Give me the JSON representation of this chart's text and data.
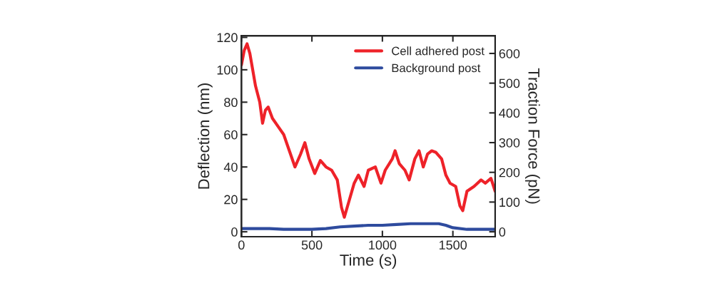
{
  "chart_data": {
    "type": "line",
    "xlabel": "Time (s)",
    "ylabel": "Deflection (nm)",
    "y2label": "Traction Force (pN)",
    "xlim": [
      0,
      1800
    ],
    "xticks": [
      0,
      500,
      1000,
      1500
    ],
    "ylim": [
      -3,
      121
    ],
    "yticks": [
      0,
      20,
      40,
      60,
      80,
      100,
      120
    ],
    "y2lim": [
      -16.35,
      659.5
    ],
    "y2ticks": [
      0,
      100,
      200,
      300,
      400,
      500,
      600
    ],
    "grid": false,
    "legend": "top right",
    "marker": "none",
    "line_style": "solid",
    "series": [
      {
        "name": "Cell adhered post",
        "color": "#ee2229",
        "x": [
          0,
          20,
          40,
          60,
          80,
          100,
          130,
          150,
          170,
          190,
          220,
          260,
          300,
          340,
          380,
          420,
          450,
          480,
          520,
          560,
          600,
          640,
          680,
          710,
          730,
          760,
          800,
          830,
          870,
          900,
          950,
          990,
          1020,
          1070,
          1090,
          1120,
          1160,
          1190,
          1230,
          1260,
          1290,
          1320,
          1350,
          1380,
          1420,
          1450,
          1480,
          1520,
          1550,
          1570,
          1600,
          1650,
          1700,
          1730,
          1770,
          1800
        ],
        "values": [
          103,
          112,
          116,
          110,
          100,
          90,
          80,
          67,
          75,
          77,
          70,
          65,
          60,
          50,
          40,
          48,
          55,
          45,
          36,
          44,
          40,
          38,
          32,
          15,
          9,
          18,
          30,
          35,
          28,
          38,
          40,
          30,
          38,
          45,
          50,
          42,
          38,
          32,
          45,
          50,
          40,
          48,
          50,
          49,
          45,
          35,
          30,
          28,
          16,
          13,
          25,
          28,
          32,
          30,
          33,
          25
        ]
      },
      {
        "name": "Background post",
        "color": "#2e4b9e",
        "x": [
          0,
          100,
          200,
          300,
          400,
          500,
          600,
          700,
          800,
          900,
          1000,
          1100,
          1200,
          1300,
          1400,
          1450,
          1500,
          1600,
          1700,
          1800
        ],
        "values": [
          2,
          2,
          2,
          1.5,
          1.5,
          1.5,
          2,
          3,
          3.5,
          4,
          4,
          4.5,
          5,
          5,
          5,
          4,
          2.5,
          1.5,
          1.5,
          1.5
        ]
      }
    ]
  }
}
